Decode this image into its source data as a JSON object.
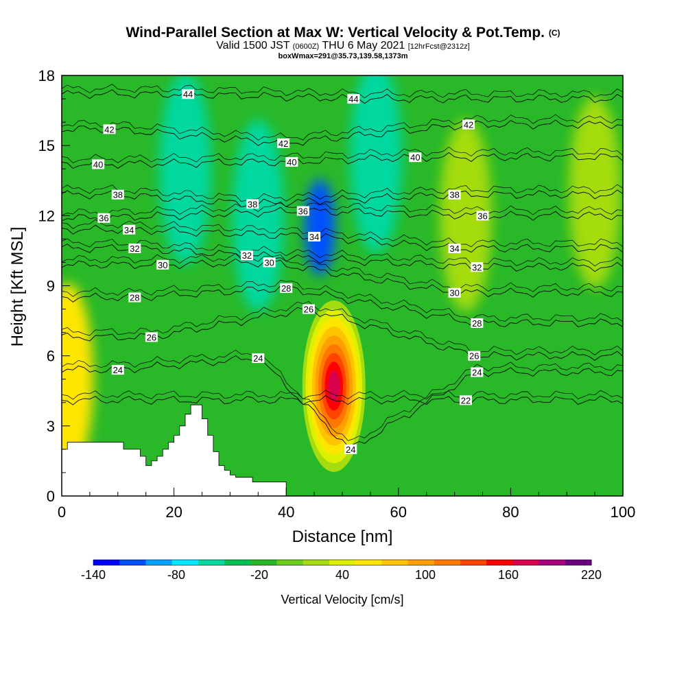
{
  "title": {
    "main": "Wind-Parallel Section at Max W: Vertical Velocity & Pot.Temp.",
    "copyright": "(C)",
    "sub_valid": "Valid 1500 JST",
    "sub_utc": "(0600Z)",
    "sub_date": "THU 6 May 2021",
    "sub_fcst": "[12hrFcst@2312z]",
    "sub3": "boxWmax=291@35.73,139.58,1373m"
  },
  "chart_data": {
    "type": "heatmap",
    "title": "Wind-Parallel Section at Max W: Vertical Velocity & Pot.Temp.",
    "xlabel": "Distance [nm]",
    "ylabel": "Height [Kft MSL]",
    "xlim": [
      0,
      100
    ],
    "ylim": [
      0,
      18
    ],
    "x_ticks": [
      0,
      20,
      40,
      60,
      80,
      100
    ],
    "y_ticks": [
      0,
      3,
      6,
      9,
      12,
      15,
      18
    ],
    "colorbar": {
      "title": "Vertical Velocity [cm/s]",
      "tick_labels": [
        "-140",
        "-80",
        "-20",
        "40",
        "100",
        "160",
        "220"
      ],
      "tick_values": [
        -140,
        -80,
        -20,
        40,
        100,
        160,
        220
      ],
      "bins": [
        -140,
        -120,
        -100,
        -80,
        -60,
        -40,
        -20,
        0,
        20,
        40,
        60,
        80,
        100,
        120,
        140,
        160,
        180,
        200,
        220
      ],
      "colors": [
        "#0000ff",
        "#0050ff",
        "#00a0ff",
        "#00eaff",
        "#00d8a0",
        "#00c050",
        "#28b828",
        "#6ccc1c",
        "#a4dc10",
        "#dcf000",
        "#ffe600",
        "#ffc400",
        "#ffa000",
        "#ff7800",
        "#ff4400",
        "#ff0000",
        "#d8004c",
        "#a8007c",
        "#6c0080"
      ]
    },
    "velocity_features": [
      {
        "x": 48.5,
        "y": 4.5,
        "w": 190,
        "note": "updraft max"
      },
      {
        "x": 46,
        "y": 11.5,
        "w": -110,
        "note": "downdraft"
      },
      {
        "x": 56,
        "y": 14.5,
        "w": -55
      },
      {
        "x": 35,
        "y": 12,
        "w": -60
      },
      {
        "x": 22,
        "y": 14,
        "w": -55
      },
      {
        "x": 72,
        "y": 12,
        "w": 30
      },
      {
        "x": 95,
        "y": 13,
        "w": 30
      },
      {
        "x": 1,
        "y": 5,
        "w": 60
      }
    ],
    "theta_contours": [
      {
        "value": 22,
        "labels": [
          [
            72,
            4.1
          ]
        ]
      },
      {
        "value": 24,
        "labels": [
          [
            10,
            5.4
          ],
          [
            35,
            5.9
          ],
          [
            51.5,
            2.0
          ],
          [
            74,
            5.3
          ]
        ]
      },
      {
        "value": 26,
        "labels": [
          [
            16,
            6.8
          ],
          [
            44,
            8.0
          ],
          [
            73.5,
            6.0
          ]
        ]
      },
      {
        "value": 28,
        "labels": [
          [
            13,
            8.5
          ],
          [
            40,
            8.9
          ],
          [
            74,
            7.4
          ]
        ]
      },
      {
        "value": 30,
        "labels": [
          [
            18,
            9.9
          ],
          [
            37,
            10.0
          ],
          [
            70,
            8.7
          ]
        ]
      },
      {
        "value": 32,
        "labels": [
          [
            13,
            10.6
          ],
          [
            33,
            10.3
          ],
          [
            74,
            9.8
          ]
        ]
      },
      {
        "value": 34,
        "labels": [
          [
            12,
            11.4
          ],
          [
            45,
            11.1
          ],
          [
            70,
            10.6
          ]
        ]
      },
      {
        "value": 36,
        "labels": [
          [
            7.5,
            11.9
          ],
          [
            43,
            12.2
          ],
          [
            75,
            12.0
          ]
        ]
      },
      {
        "value": 38,
        "labels": [
          [
            10,
            12.9
          ],
          [
            34,
            12.5
          ],
          [
            70,
            12.9
          ]
        ]
      },
      {
        "value": 40,
        "labels": [
          [
            6.5,
            14.2
          ],
          [
            41,
            14.3
          ],
          [
            63,
            14.5
          ]
        ]
      },
      {
        "value": 42,
        "labels": [
          [
            8.5,
            15.7
          ],
          [
            39.5,
            15.1
          ],
          [
            72.5,
            15.9
          ]
        ]
      },
      {
        "value": 44,
        "labels": [
          [
            22.5,
            17.2
          ],
          [
            52,
            17.0
          ]
        ]
      }
    ],
    "terrain_profile": [
      [
        0,
        2.0
      ],
      [
        1,
        2.3
      ],
      [
        7,
        2.3
      ],
      [
        11,
        2.0
      ],
      [
        14,
        1.7
      ],
      [
        15,
        1.3
      ],
      [
        16,
        1.5
      ],
      [
        17,
        1.7
      ],
      [
        18,
        2.0
      ],
      [
        19,
        2.3
      ],
      [
        20,
        2.6
      ],
      [
        21,
        3.0
      ],
      [
        22,
        3.5
      ],
      [
        23,
        3.9
      ],
      [
        25,
        3.3
      ],
      [
        26,
        2.6
      ],
      [
        27,
        1.9
      ],
      [
        28,
        1.3
      ],
      [
        29,
        1.1
      ],
      [
        30,
        0.9
      ],
      [
        31,
        0.8
      ],
      [
        34,
        0.6
      ],
      [
        40,
        0.3
      ]
    ]
  }
}
